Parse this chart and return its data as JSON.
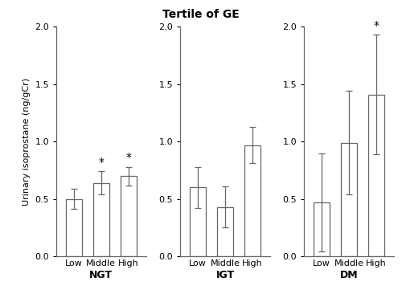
{
  "title": "Tertile of GE",
  "ylabel": "Urinary isoprostane (ng/gCr)",
  "groups": [
    "NGT",
    "IGT",
    "DM"
  ],
  "categories": [
    "Low",
    "Middle",
    "High"
  ],
  "bar_values": {
    "NGT": [
      0.5,
      0.64,
      0.7
    ],
    "IGT": [
      0.6,
      0.43,
      0.97
    ],
    "DM": [
      0.47,
      0.99,
      1.41
    ]
  },
  "error_values": {
    "NGT": [
      0.09,
      0.1,
      0.08
    ],
    "IGT": [
      0.18,
      0.18,
      0.16
    ],
    "DM": [
      0.43,
      0.45,
      0.52
    ]
  },
  "significance": {
    "NGT": [
      false,
      true,
      true
    ],
    "IGT": [
      false,
      false,
      false
    ],
    "DM": [
      false,
      false,
      true
    ]
  },
  "ylim": [
    0,
    2
  ],
  "yticks": [
    0,
    0.5,
    1,
    1.5,
    2
  ],
  "bar_color": "#ffffff",
  "bar_edgecolor": "#666666",
  "bar_width": 0.6,
  "bar_linewidth": 0.9,
  "error_linewidth": 0.9,
  "error_capsize": 3,
  "background_color": "#ffffff",
  "title_fontsize": 10,
  "ylabel_fontsize": 8,
  "tick_fontsize": 8,
  "group_label_fontsize": 9,
  "star_fontsize": 10
}
